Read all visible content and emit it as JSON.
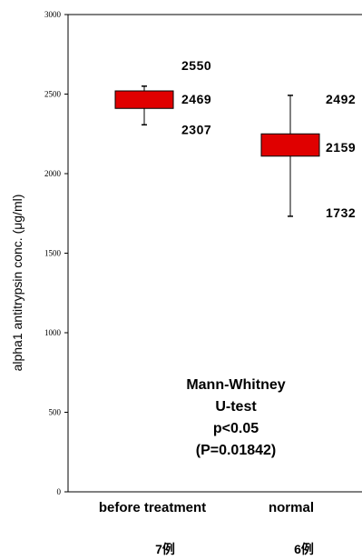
{
  "chart_data": {
    "type": "box",
    "ylabel": "alpha1 antitrypsin conc. (μg/ml)",
    "ylim": [
      0,
      3000
    ],
    "yticks": [
      0,
      500,
      1000,
      1500,
      2000,
      2500,
      3000
    ],
    "categories": [
      "before treatment",
      "normal"
    ],
    "counts": [
      "7例",
      "6例"
    ],
    "boxes": [
      {
        "category": "before treatment",
        "whisker_high": 2550,
        "box_high": 2520,
        "median": 2469,
        "box_low": 2410,
        "whisker_low": 2307,
        "labels": [
          "2550",
          "2469",
          "2307"
        ]
      },
      {
        "category": "normal",
        "whisker_high": 2492,
        "box_high": 2250,
        "median": 2159,
        "box_low": 2110,
        "whisker_low": 1732,
        "labels": [
          "2492",
          "2159",
          "1732"
        ]
      }
    ],
    "box_color": "#e00000",
    "annotation": [
      "Mann-Whitney",
      "U-test",
      "p<0.05",
      "(P=0.01842)"
    ]
  }
}
